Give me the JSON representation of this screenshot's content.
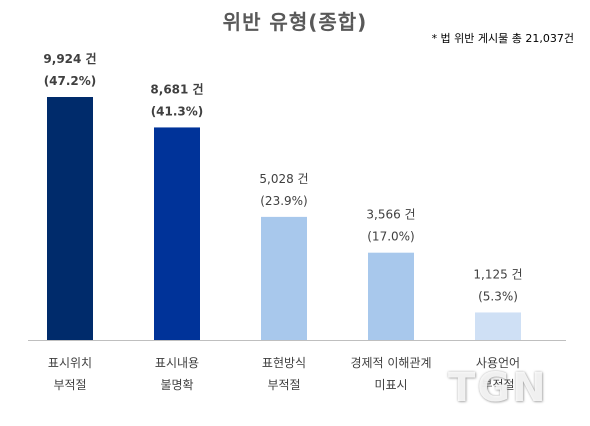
{
  "chart_data": {
    "type": "bar",
    "title": "위반 유형(종합)",
    "note": "* 법 위반 게시물 총 21,037건",
    "categories": [
      [
        "표시위치",
        "부적절"
      ],
      [
        "표시내용",
        "불명확"
      ],
      [
        "표현방식",
        "부적절"
      ],
      [
        "경제적 이해관계",
        "미표시"
      ],
      [
        "사용언어",
        "부적절"
      ]
    ],
    "values": [
      9924,
      8681,
      5028,
      3566,
      1125
    ],
    "value_labels": [
      "9,924 건",
      "8,681 건",
      "5,028 건",
      "3,566 건",
      "1,125 건"
    ],
    "percent_labels": [
      "(47.2%)",
      "(41.3%)",
      "(23.9%)",
      "(17.0%)",
      "(5.3%)"
    ],
    "bold_labels": [
      true,
      true,
      false,
      false,
      false
    ],
    "colors": [
      "#002b6b",
      "#003399",
      "#a8c8ec",
      "#a8c8ec",
      "#cfe0f5"
    ],
    "ylim": [
      0,
      9924
    ],
    "grid": false,
    "legend": "none",
    "total": 21037
  },
  "watermark": "TGN"
}
